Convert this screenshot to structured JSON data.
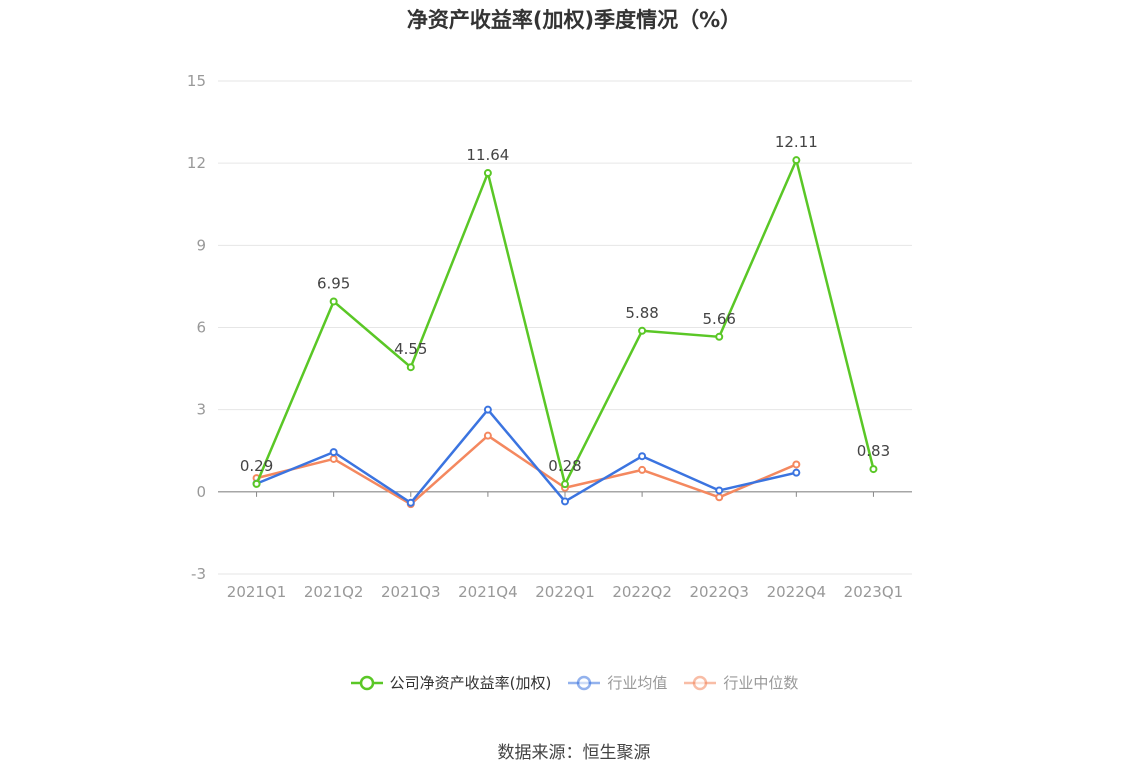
{
  "title": "净资产收益率(加权)季度情况（%）",
  "source": "数据来源：恒生聚源",
  "chart_data": {
    "type": "line",
    "title": "净资产收益率(加权)季度情况（%）",
    "categories": [
      "2021Q1",
      "2021Q2",
      "2021Q3",
      "2021Q4",
      "2022Q1",
      "2022Q2",
      "2022Q3",
      "2022Q4",
      "2023Q1"
    ],
    "ylim": [
      -3,
      15
    ],
    "yticks": [
      -3,
      0,
      3,
      6,
      9,
      12,
      15
    ],
    "grid": true,
    "legend_position": "bottom",
    "series": [
      {
        "name": "公司净资产收益率(加权)",
        "color": "#5ac726",
        "values": [
          0.29,
          6.95,
          4.55,
          11.64,
          0.28,
          5.88,
          5.66,
          12.11,
          0.83
        ],
        "labels": [
          "0.29",
          "6.95",
          "4.55",
          "11.64",
          "0.28",
          "5.88",
          "5.66",
          "12.11",
          "0.83"
        ]
      },
      {
        "name": "行业均值",
        "color": "#3b74e0",
        "values": [
          0.3,
          1.45,
          -0.4,
          3.0,
          -0.35,
          1.3,
          0.05,
          0.7,
          null
        ]
      },
      {
        "name": "行业中位数",
        "color": "#f4885f",
        "values": [
          0.5,
          1.2,
          -0.45,
          2.05,
          0.15,
          0.8,
          -0.2,
          1.0,
          null
        ]
      }
    ]
  }
}
